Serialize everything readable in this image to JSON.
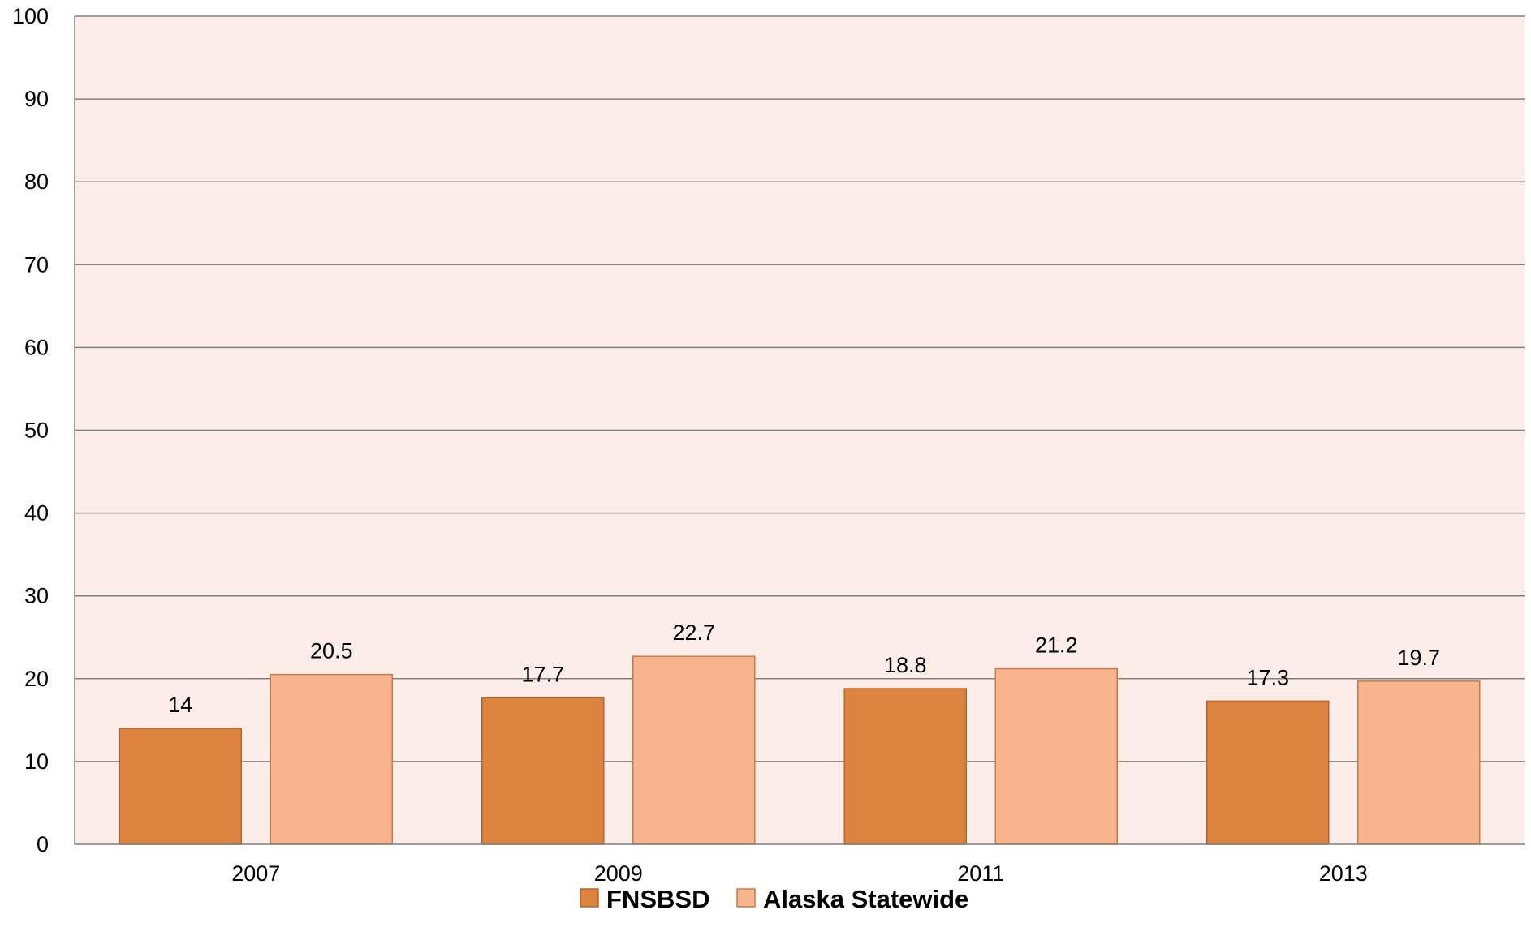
{
  "chart_data": {
    "type": "bar",
    "title": "",
    "xlabel": "",
    "ylabel": "",
    "categories": [
      "2007",
      "2009",
      "2011",
      "2013"
    ],
    "series": [
      {
        "name": "FNSBSD",
        "values": [
          14,
          17.7,
          18.8,
          17.3
        ],
        "color": "#dc843f",
        "border": "#b8652a"
      },
      {
        "name": "Alaska Statewide",
        "values": [
          20.5,
          22.7,
          21.2,
          19.7
        ],
        "color": "#f8b38f",
        "border": "#c97a45"
      }
    ],
    "data_labels": [
      [
        "14",
        "17.7",
        "18.8",
        "17.3"
      ],
      [
        "20.5",
        "22.7",
        "21.2",
        "19.7"
      ]
    ],
    "ylim": [
      0,
      100
    ],
    "yticks": [
      0,
      10,
      20,
      30,
      40,
      50,
      60,
      70,
      80,
      90,
      100
    ],
    "grid": true,
    "legend_position": "bottom-center",
    "colors": {
      "plot_background": "#fcede9",
      "gridline": "#7f7f7f",
      "axis": "#7f7f7f"
    }
  }
}
